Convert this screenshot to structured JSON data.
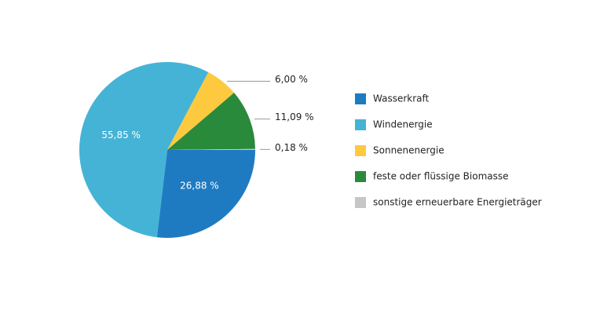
{
  "chart_data": {
    "type": "pie",
    "categories": [
      "Wasserkraft",
      "Windenergie",
      "Sonnenenergie",
      "feste oder flüssige Biomasse",
      "sonstige erneuerbare Energieträger"
    ],
    "values": [
      26.88,
      55.85,
      6.0,
      11.09,
      0.18
    ],
    "value_labels": [
      "26,88 %",
      "55,85 %",
      "6,00 %",
      "11,09 %",
      "0,18 %"
    ],
    "colors": [
      "#1f7bc1",
      "#45b3d6",
      "#fdca3f",
      "#2a8a3b",
      "#c6c6c6"
    ],
    "legend": "right"
  }
}
